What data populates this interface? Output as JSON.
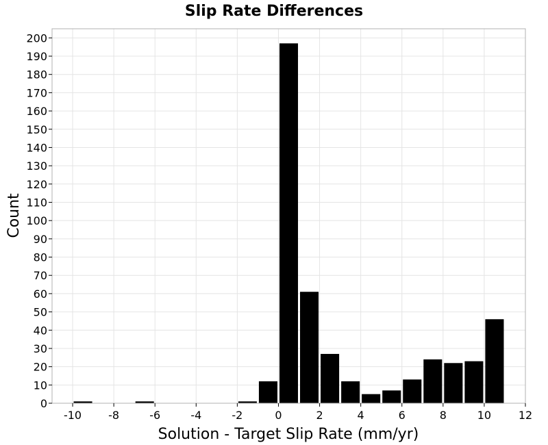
{
  "chart_data": {
    "type": "bar",
    "title": "Slip Rate Differences",
    "xlabel": "Solution - Target Slip Rate (mm/yr)",
    "ylabel": "Count",
    "xlim": [
      -11,
      12
    ],
    "ylim": [
      0,
      205
    ],
    "xticks": [
      -10,
      -8,
      -6,
      -4,
      -2,
      0,
      2,
      4,
      6,
      8,
      10,
      12
    ],
    "yticks": [
      0,
      10,
      20,
      30,
      40,
      50,
      60,
      70,
      80,
      90,
      100,
      110,
      120,
      130,
      140,
      150,
      160,
      170,
      180,
      190,
      200
    ],
    "bin_width": 1,
    "bins": [
      {
        "center": -9.5,
        "count": 1
      },
      {
        "center": -6.5,
        "count": 1
      },
      {
        "center": -1.5,
        "count": 1
      },
      {
        "center": -0.5,
        "count": 12
      },
      {
        "center": 0.5,
        "count": 197
      },
      {
        "center": 1.5,
        "count": 61
      },
      {
        "center": 2.5,
        "count": 27
      },
      {
        "center": 3.5,
        "count": 12
      },
      {
        "center": 4.5,
        "count": 5
      },
      {
        "center": 5.5,
        "count": 7
      },
      {
        "center": 6.5,
        "count": 13
      },
      {
        "center": 7.5,
        "count": 24
      },
      {
        "center": 8.5,
        "count": 22
      },
      {
        "center": 9.5,
        "count": 23
      },
      {
        "center": 10.5,
        "count": 46
      }
    ],
    "bar_color": "#000000",
    "grid": true,
    "legend": "none"
  }
}
